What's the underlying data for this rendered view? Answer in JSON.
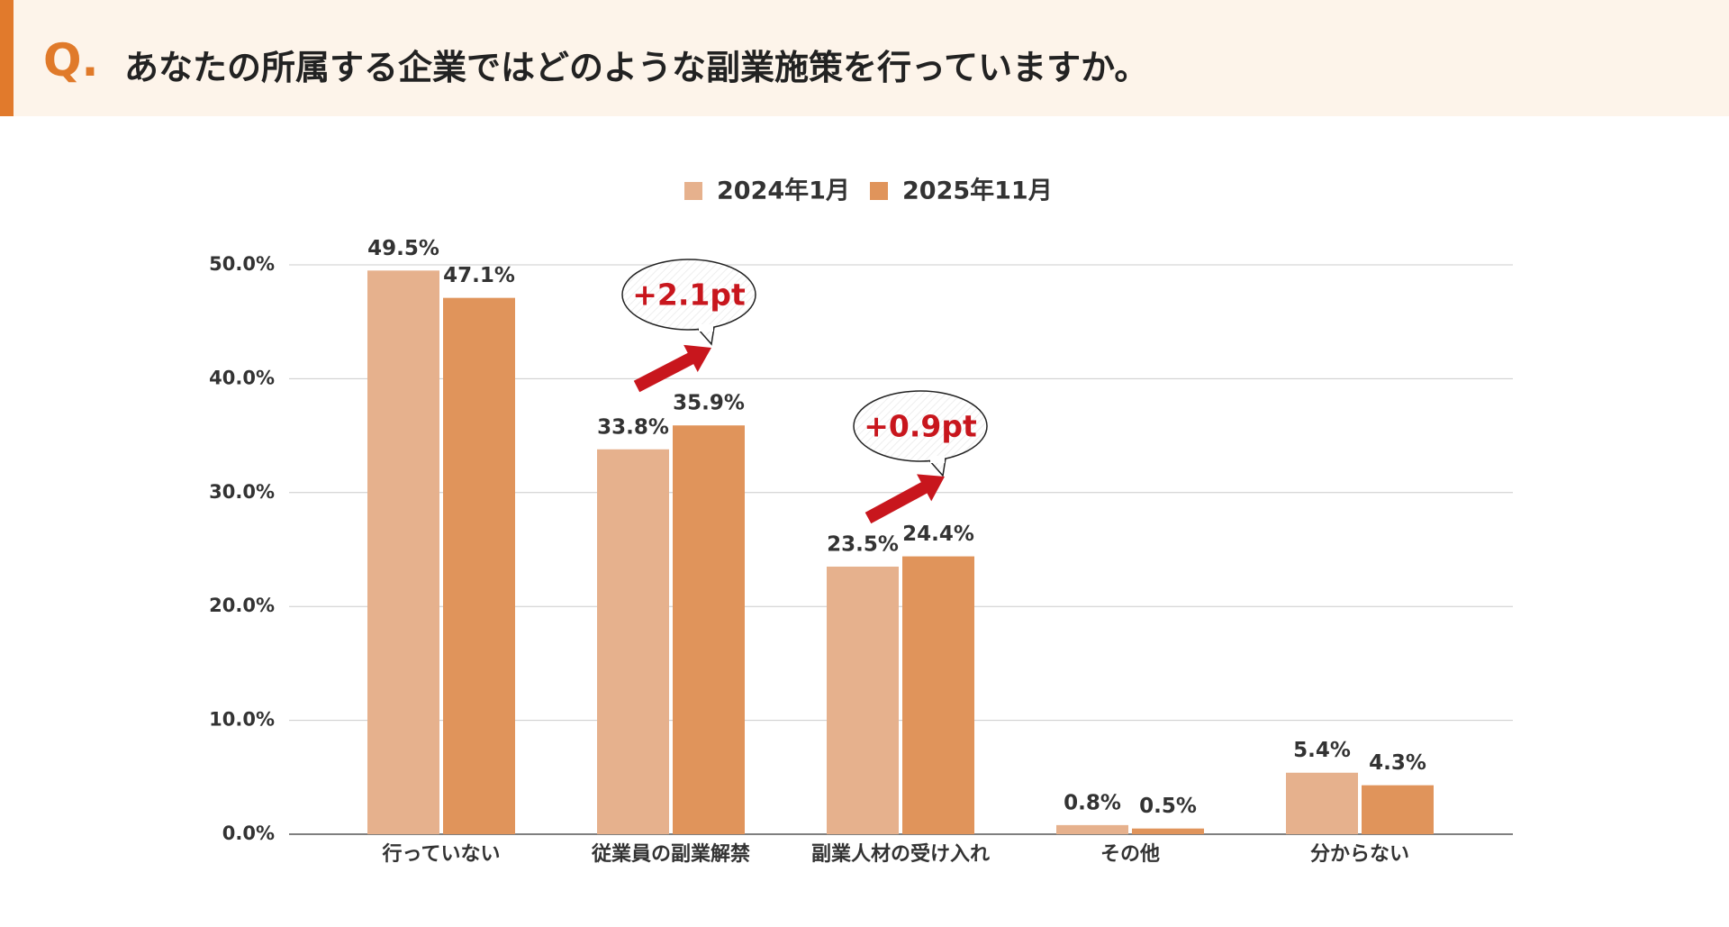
{
  "header": {
    "label": "Q."
  },
  "chart_data": {
    "type": "bar",
    "title": "あなたの所属する企業ではどのような副業施策を行っていますか。",
    "categories": [
      "行っていない",
      "従業員の副業解禁",
      "副業人材の受け入れ",
      "その他",
      "分からない"
    ],
    "series": [
      {
        "name": "2024年1月",
        "color": "#e6b18d",
        "values": [
          49.5,
          33.8,
          23.5,
          0.8,
          5.4
        ],
        "value_labels": [
          "49.5%",
          "33.8%",
          "23.5%",
          "0.8%",
          "5.4%"
        ]
      },
      {
        "name": "2025年11月",
        "color": "#e0945b",
        "values": [
          47.1,
          35.9,
          24.4,
          0.5,
          4.3
        ],
        "value_labels": [
          "47.1%",
          "35.9%",
          "24.4%",
          "0.5%",
          "4.3%"
        ]
      }
    ],
    "ylim": [
      0,
      50
    ],
    "yticks": [
      {
        "value": 0,
        "label": "0.0%"
      },
      {
        "value": 10,
        "label": "10.0%"
      },
      {
        "value": 20,
        "label": "20.0%"
      },
      {
        "value": 30,
        "label": "30.0%"
      },
      {
        "value": 40,
        "label": "40.0%"
      },
      {
        "value": 50,
        "label": "50.0%"
      }
    ],
    "grid": true,
    "annotations": [
      "+2.1pt",
      "+0.9pt"
    ]
  }
}
